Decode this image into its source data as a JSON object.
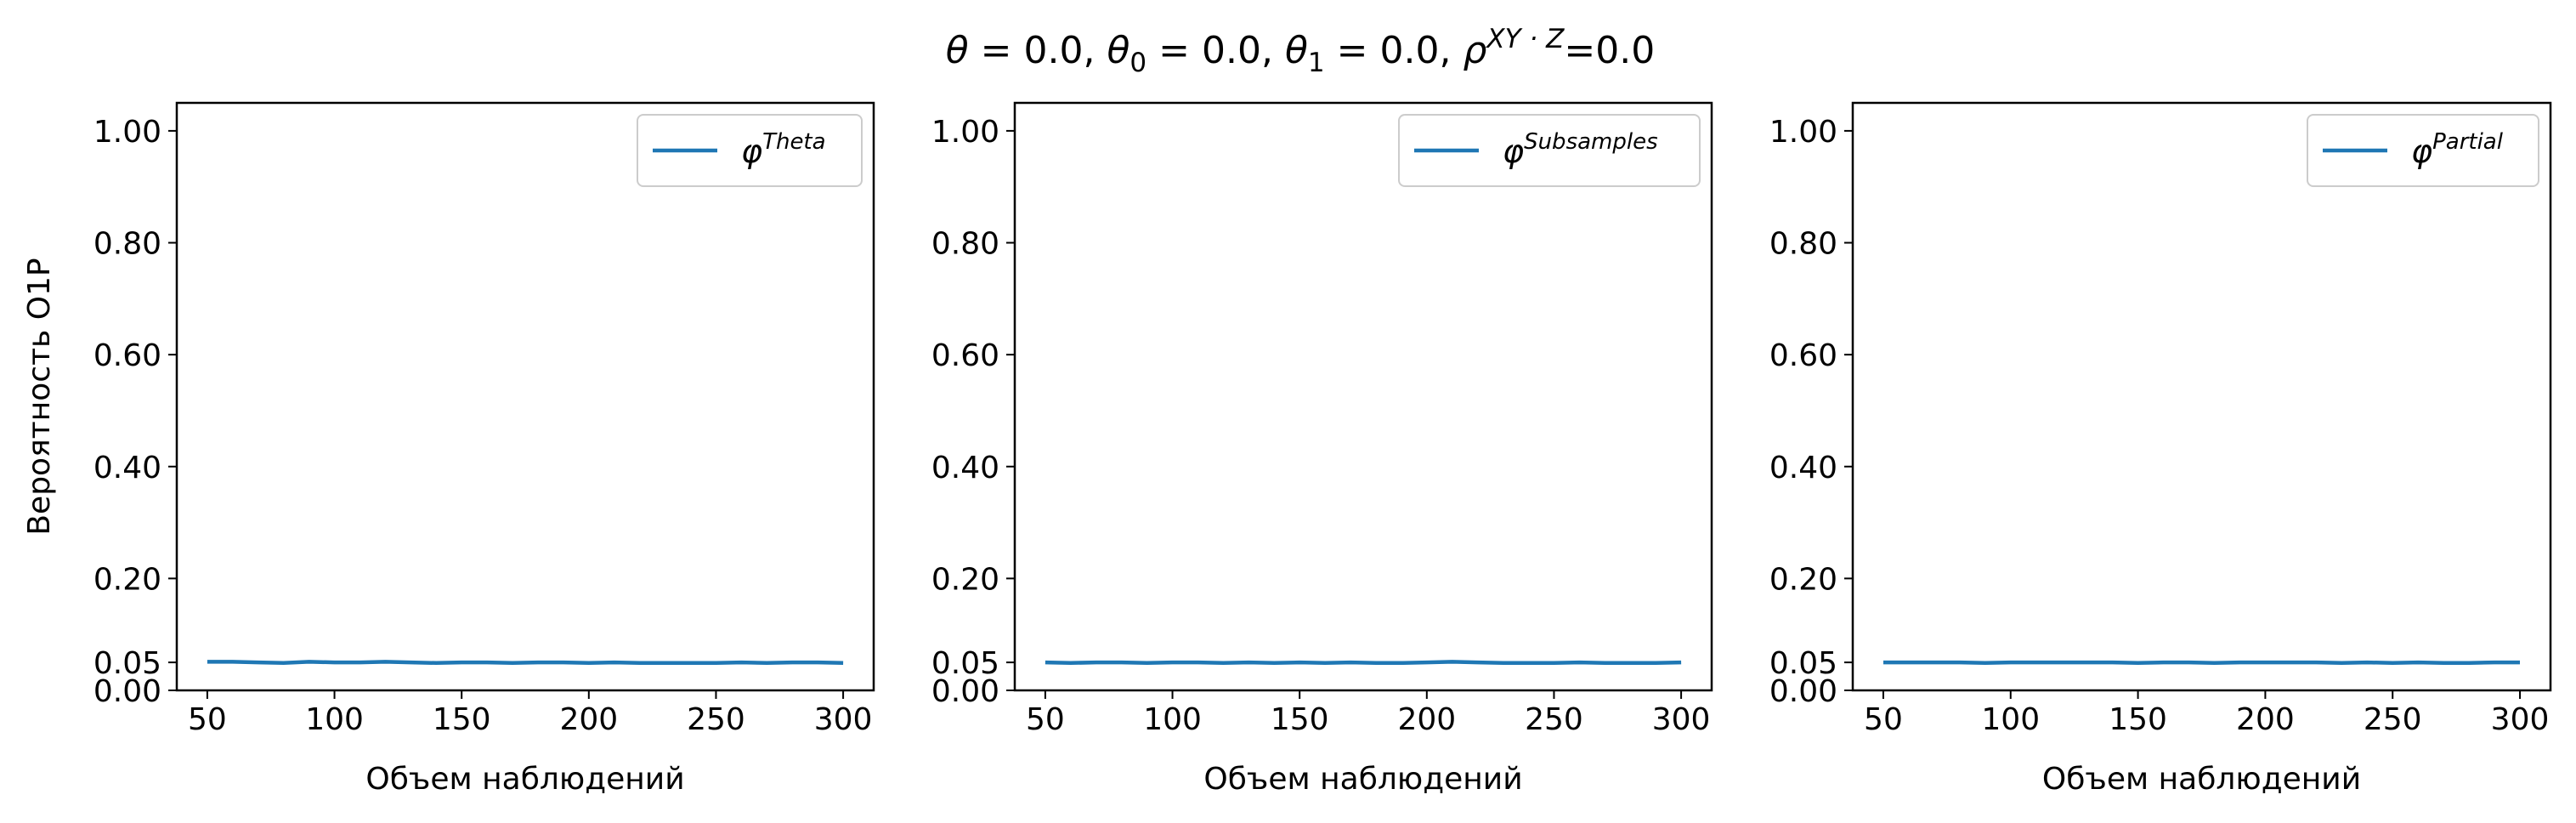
{
  "title": {
    "theta": "θ",
    "eq": " = ",
    "theta_val": "0.0",
    "sep": ", ",
    "theta0": "θ",
    "theta0_sub": "0",
    "theta0_val": "0.0",
    "theta1": "θ",
    "theta1_sub": "1",
    "theta1_val": "0.0",
    "rho": "ρ",
    "rho_sup": "XY · Z",
    "rho_eq": "=",
    "rho_val": "0.0"
  },
  "colors": {
    "series": "#1f77b4",
    "axis": "#000000",
    "legend_border": "#cccccc"
  },
  "chart_data": [
    {
      "type": "line",
      "title": "",
      "xlabel": "Объем наблюдений",
      "ylabel": "Вероятность О1Р",
      "xlim": [
        38,
        312
      ],
      "ylim": [
        0,
        1.05
      ],
      "xticks": [
        50,
        100,
        150,
        200,
        250,
        300
      ],
      "yticks": [
        0.0,
        0.05,
        0.2,
        0.4,
        0.6,
        0.8,
        1.0
      ],
      "ytick_labels": [
        "0.00",
        "0.05",
        "0.20",
        "0.40",
        "0.60",
        "0.80",
        "1.00"
      ],
      "legend_position": "top-right",
      "series": [
        {
          "name": "φ",
          "name_sup": "Theta",
          "x": [
            50,
            60,
            70,
            80,
            90,
            100,
            110,
            120,
            130,
            140,
            150,
            160,
            170,
            180,
            190,
            200,
            210,
            220,
            230,
            240,
            250,
            260,
            270,
            280,
            290,
            300
          ],
          "y": [
            0.051,
            0.051,
            0.05,
            0.049,
            0.051,
            0.05,
            0.05,
            0.051,
            0.05,
            0.049,
            0.05,
            0.05,
            0.049,
            0.05,
            0.05,
            0.049,
            0.05,
            0.049,
            0.049,
            0.049,
            0.049,
            0.05,
            0.049,
            0.05,
            0.05,
            0.049
          ]
        }
      ]
    },
    {
      "type": "line",
      "title": "",
      "xlabel": "Объем наблюдений",
      "ylabel": "",
      "xlim": [
        38,
        312
      ],
      "ylim": [
        0,
        1.05
      ],
      "xticks": [
        50,
        100,
        150,
        200,
        250,
        300
      ],
      "yticks": [
        0.0,
        0.05,
        0.2,
        0.4,
        0.6,
        0.8,
        1.0
      ],
      "ytick_labels": [
        "0.00",
        "0.05",
        "0.20",
        "0.40",
        "0.60",
        "0.80",
        "1.00"
      ],
      "legend_position": "top-right",
      "series": [
        {
          "name": "φ",
          "name_sup": "Subsamples",
          "x": [
            50,
            60,
            70,
            80,
            90,
            100,
            110,
            120,
            130,
            140,
            150,
            160,
            170,
            180,
            190,
            200,
            210,
            220,
            230,
            240,
            250,
            260,
            270,
            280,
            290,
            300
          ],
          "y": [
            0.05,
            0.049,
            0.05,
            0.05,
            0.049,
            0.05,
            0.05,
            0.049,
            0.05,
            0.049,
            0.05,
            0.049,
            0.05,
            0.049,
            0.049,
            0.05,
            0.051,
            0.05,
            0.049,
            0.049,
            0.049,
            0.05,
            0.049,
            0.049,
            0.049,
            0.05
          ]
        }
      ]
    },
    {
      "type": "line",
      "title": "",
      "xlabel": "Объем наблюдений",
      "ylabel": "",
      "xlim": [
        38,
        312
      ],
      "ylim": [
        0,
        1.05
      ],
      "xticks": [
        50,
        100,
        150,
        200,
        250,
        300
      ],
      "yticks": [
        0.0,
        0.05,
        0.2,
        0.4,
        0.6,
        0.8,
        1.0
      ],
      "ytick_labels": [
        "0.00",
        "0.05",
        "0.20",
        "0.40",
        "0.60",
        "0.80",
        "1.00"
      ],
      "legend_position": "top-right",
      "series": [
        {
          "name": "φ",
          "name_sup": "Partial",
          "x": [
            50,
            60,
            70,
            80,
            90,
            100,
            110,
            120,
            130,
            140,
            150,
            160,
            170,
            180,
            190,
            200,
            210,
            220,
            230,
            240,
            250,
            260,
            270,
            280,
            290,
            300
          ],
          "y": [
            0.05,
            0.05,
            0.05,
            0.05,
            0.049,
            0.05,
            0.05,
            0.05,
            0.05,
            0.05,
            0.049,
            0.05,
            0.05,
            0.049,
            0.05,
            0.05,
            0.05,
            0.05,
            0.049,
            0.05,
            0.049,
            0.05,
            0.049,
            0.049,
            0.05,
            0.05
          ]
        }
      ]
    }
  ]
}
